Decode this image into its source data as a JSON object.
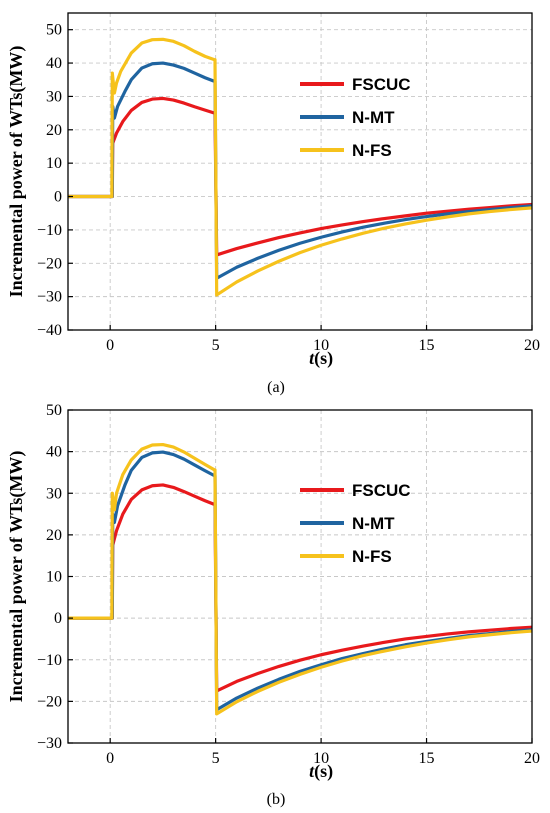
{
  "chart_data": [
    {
      "type": "line",
      "panel_label": "(a)",
      "xlabel_var": "t",
      "xlabel_unit": "(s)",
      "ylabel": "Incremental power of WTs(MW)",
      "xlim": [
        -2,
        20
      ],
      "ylim": [
        -40,
        55
      ],
      "xticks": [
        0,
        5,
        10,
        15,
        20
      ],
      "yticks": [
        -40,
        -30,
        -20,
        -10,
        0,
        10,
        20,
        30,
        40,
        50
      ],
      "grid": true,
      "legend_position": "right-middle",
      "series": [
        {
          "name": "FSCUC",
          "color": "#e8191c",
          "points": [
            [
              -2,
              0
            ],
            [
              0,
              0
            ],
            [
              0.1,
              0
            ],
            [
              0.12,
              16
            ],
            [
              0.3,
              19
            ],
            [
              0.6,
              22.5
            ],
            [
              1.0,
              25.8
            ],
            [
              1.5,
              28.2
            ],
            [
              2.0,
              29.2
            ],
            [
              2.5,
              29.4
            ],
            [
              3.0,
              28.9
            ],
            [
              3.5,
              28.0
            ],
            [
              4.0,
              26.9
            ],
            [
              4.5,
              25.9
            ],
            [
              4.95,
              25.0
            ],
            [
              4.97,
              25.0
            ],
            [
              5.05,
              -17.5
            ],
            [
              6,
              -15.6
            ],
            [
              7,
              -13.9
            ],
            [
              8,
              -12.3
            ],
            [
              9,
              -10.9
            ],
            [
              10,
              -9.6
            ],
            [
              11,
              -8.5
            ],
            [
              12,
              -7.5
            ],
            [
              13,
              -6.6
            ],
            [
              14,
              -5.8
            ],
            [
              15,
              -5.0
            ],
            [
              16,
              -4.4
            ],
            [
              17,
              -3.8
            ],
            [
              18,
              -3.3
            ],
            [
              19,
              -2.8
            ],
            [
              20,
              -2.4
            ]
          ]
        },
        {
          "name": "N-MT",
          "color": "#1f64a0",
          "points": [
            [
              -2,
              0
            ],
            [
              0,
              0
            ],
            [
              0.1,
              0
            ],
            [
              0.12,
              27
            ],
            [
              0.2,
              23.5
            ],
            [
              0.35,
              27
            ],
            [
              0.7,
              31.5
            ],
            [
              1.0,
              35
            ],
            [
              1.5,
              38.5
            ],
            [
              2.0,
              39.8
            ],
            [
              2.5,
              40.0
            ],
            [
              3.0,
              39.4
            ],
            [
              3.5,
              38.4
            ],
            [
              4.0,
              37.0
            ],
            [
              4.5,
              35.6
            ],
            [
              4.95,
              34.5
            ],
            [
              4.97,
              34.5
            ],
            [
              5.05,
              -24.5
            ],
            [
              6,
              -21.2
            ],
            [
              7,
              -18.5
            ],
            [
              8,
              -16.1
            ],
            [
              9,
              -14.0
            ],
            [
              10,
              -12.2
            ],
            [
              11,
              -10.6
            ],
            [
              12,
              -9.2
            ],
            [
              13,
              -8.0
            ],
            [
              14,
              -6.9
            ],
            [
              15,
              -6.0
            ],
            [
              16,
              -5.2
            ],
            [
              17,
              -4.5
            ],
            [
              18,
              -3.9
            ],
            [
              19,
              -3.3
            ],
            [
              20,
              -2.8
            ]
          ]
        },
        {
          "name": "N-FS",
          "color": "#f6c21c",
          "points": [
            [
              -2,
              0
            ],
            [
              0,
              0
            ],
            [
              0.08,
              0
            ],
            [
              0.1,
              37
            ],
            [
              0.2,
              31
            ],
            [
              0.3,
              34
            ],
            [
              0.5,
              37.5
            ],
            [
              1.0,
              43
            ],
            [
              1.5,
              46
            ],
            [
              2.0,
              47
            ],
            [
              2.5,
              47.1
            ],
            [
              3.0,
              46.5
            ],
            [
              3.5,
              45.2
            ],
            [
              4.0,
              43.5
            ],
            [
              4.5,
              42.0
            ],
            [
              4.95,
              41.0
            ],
            [
              4.97,
              41.0
            ],
            [
              5.05,
              -29.5
            ],
            [
              6,
              -25.6
            ],
            [
              7,
              -22.3
            ],
            [
              8,
              -19.4
            ],
            [
              9,
              -16.8
            ],
            [
              10,
              -14.6
            ],
            [
              11,
              -12.7
            ],
            [
              12,
              -11.0
            ],
            [
              13,
              -9.5
            ],
            [
              14,
              -8.2
            ],
            [
              15,
              -7.1
            ],
            [
              16,
              -6.1
            ],
            [
              17,
              -5.2
            ],
            [
              18,
              -4.5
            ],
            [
              19,
              -3.9
            ],
            [
              20,
              -3.4
            ]
          ]
        }
      ]
    },
    {
      "type": "line",
      "panel_label": "(b)",
      "xlabel_var": "t",
      "xlabel_unit": "(s)",
      "ylabel": "Incremental power of WTs(MW)",
      "xlim": [
        -2,
        20
      ],
      "ylim": [
        -30,
        50
      ],
      "xticks": [
        0,
        5,
        10,
        15,
        20
      ],
      "yticks": [
        -30,
        -20,
        -10,
        0,
        10,
        20,
        30,
        40,
        50
      ],
      "grid": true,
      "legend_position": "right-middle",
      "series": [
        {
          "name": "FSCUC",
          "color": "#e8191c",
          "points": [
            [
              -2,
              0
            ],
            [
              0,
              0
            ],
            [
              0.1,
              0
            ],
            [
              0.12,
              17.5
            ],
            [
              0.3,
              21
            ],
            [
              0.6,
              25
            ],
            [
              1.0,
              28.5
            ],
            [
              1.5,
              30.8
            ],
            [
              2.0,
              31.8
            ],
            [
              2.5,
              32.0
            ],
            [
              3.0,
              31.4
            ],
            [
              3.5,
              30.4
            ],
            [
              4.0,
              29.3
            ],
            [
              4.5,
              28.2
            ],
            [
              4.95,
              27.3
            ],
            [
              4.97,
              27.3
            ],
            [
              5.05,
              -17.5
            ],
            [
              6,
              -15.2
            ],
            [
              7,
              -13.3
            ],
            [
              8,
              -11.6
            ],
            [
              9,
              -10.1
            ],
            [
              10,
              -8.8
            ],
            [
              11,
              -7.7
            ],
            [
              12,
              -6.7
            ],
            [
              13,
              -5.8
            ],
            [
              14,
              -5.0
            ],
            [
              15,
              -4.4
            ],
            [
              16,
              -3.8
            ],
            [
              17,
              -3.3
            ],
            [
              18,
              -2.9
            ],
            [
              19,
              -2.5
            ],
            [
              20,
              -2.2
            ]
          ]
        },
        {
          "name": "N-MT",
          "color": "#1f64a0",
          "points": [
            [
              -2,
              0
            ],
            [
              0,
              0
            ],
            [
              0.1,
              0
            ],
            [
              0.12,
              25
            ],
            [
              0.2,
              23
            ],
            [
              0.35,
              27
            ],
            [
              0.7,
              32
            ],
            [
              1.0,
              35.5
            ],
            [
              1.5,
              38.6
            ],
            [
              2.0,
              39.7
            ],
            [
              2.5,
              39.9
            ],
            [
              3.0,
              39.3
            ],
            [
              3.5,
              38.2
            ],
            [
              4.0,
              36.8
            ],
            [
              4.5,
              35.4
            ],
            [
              4.95,
              34.2
            ],
            [
              4.97,
              34.2
            ],
            [
              5.05,
              -22
            ],
            [
              6,
              -19.2
            ],
            [
              7,
              -16.8
            ],
            [
              8,
              -14.7
            ],
            [
              9,
              -12.8
            ],
            [
              10,
              -11.2
            ],
            [
              11,
              -9.7
            ],
            [
              12,
              -8.5
            ],
            [
              13,
              -7.4
            ],
            [
              14,
              -6.4
            ],
            [
              15,
              -5.6
            ],
            [
              16,
              -4.9
            ],
            [
              17,
              -4.2
            ],
            [
              18,
              -3.7
            ],
            [
              19,
              -3.2
            ],
            [
              20,
              -2.8
            ]
          ]
        },
        {
          "name": "N-FS",
          "color": "#f6c21c",
          "points": [
            [
              -2,
              0
            ],
            [
              0,
              0
            ],
            [
              0.08,
              0
            ],
            [
              0.1,
              30
            ],
            [
              0.2,
              26
            ],
            [
              0.3,
              30
            ],
            [
              0.6,
              34.5
            ],
            [
              1.0,
              38
            ],
            [
              1.5,
              40.6
            ],
            [
              2.0,
              41.6
            ],
            [
              2.5,
              41.7
            ],
            [
              3.0,
              41.1
            ],
            [
              3.5,
              39.9
            ],
            [
              4.0,
              38.4
            ],
            [
              4.5,
              36.9
            ],
            [
              4.95,
              35.6
            ],
            [
              4.97,
              35.6
            ],
            [
              5.05,
              -23
            ],
            [
              6,
              -20.1
            ],
            [
              7,
              -17.6
            ],
            [
              8,
              -15.4
            ],
            [
              9,
              -13.5
            ],
            [
              10,
              -11.8
            ],
            [
              11,
              -10.3
            ],
            [
              12,
              -9.0
            ],
            [
              13,
              -7.9
            ],
            [
              14,
              -6.9
            ],
            [
              15,
              -6.0
            ],
            [
              16,
              -5.2
            ],
            [
              17,
              -4.5
            ],
            [
              18,
              -4.0
            ],
            [
              19,
              -3.5
            ],
            [
              20,
              -3.1
            ]
          ]
        }
      ]
    }
  ]
}
